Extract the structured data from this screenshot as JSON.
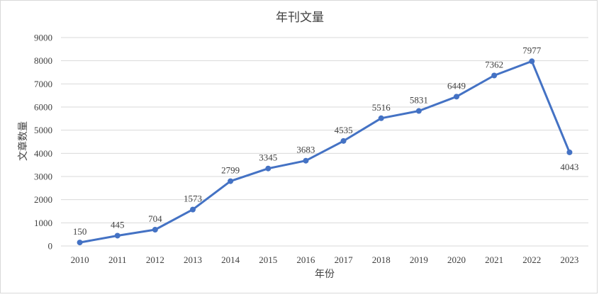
{
  "chart_data": {
    "type": "line",
    "title": "年刊文量",
    "xlabel": "年份",
    "ylabel": "文章数量",
    "categories": [
      "2010",
      "2011",
      "2012",
      "2013",
      "2014",
      "2015",
      "2016",
      "2017",
      "2018",
      "2019",
      "2020",
      "2021",
      "2022",
      "2023"
    ],
    "series": [
      {
        "values": [
          150,
          445,
          704,
          1573,
          2799,
          3345,
          3683,
          4535,
          5516,
          5831,
          6449,
          7362,
          7977,
          4043
        ]
      }
    ],
    "ylim": [
      0,
      9000
    ],
    "yticks": [
      0,
      1000,
      2000,
      3000,
      4000,
      5000,
      6000,
      7000,
      8000,
      9000
    ],
    "grid": true,
    "legend": "none",
    "colors": {
      "line": "#4472C4",
      "grid": "#d9d9d9",
      "text": "#404040"
    }
  }
}
